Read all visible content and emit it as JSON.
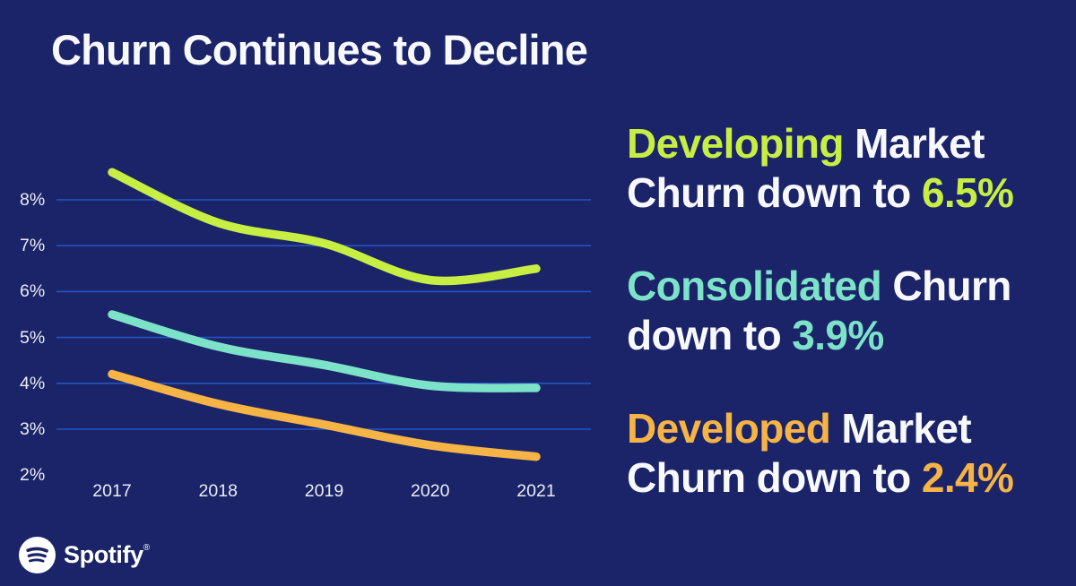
{
  "title": "Churn Continues to Decline",
  "colors": {
    "background": "#1b2469",
    "grid_blue": "#2255c5",
    "green": "#c6ee43",
    "teal": "#7de3c8",
    "orange": "#f6b446",
    "white": "#f7f9fc",
    "axis_text": "#e9edf4"
  },
  "chart_data": {
    "type": "line",
    "x": [
      2017,
      2018,
      2019,
      2020,
      2021
    ],
    "x_tick_labels": [
      "2017",
      "2018",
      "2019",
      "2020",
      "2021"
    ],
    "series": [
      {
        "name": "Developing Market",
        "color_key": "green",
        "values": [
          8.6,
          7.5,
          7.05,
          6.25,
          6.5
        ]
      },
      {
        "name": "Consolidated",
        "color_key": "teal",
        "values": [
          5.5,
          4.8,
          4.4,
          3.95,
          3.9
        ]
      },
      {
        "name": "Developed Market",
        "color_key": "orange",
        "values": [
          4.2,
          3.55,
          3.1,
          2.65,
          2.4
        ]
      }
    ],
    "y_ticks": [
      {
        "label": "8%",
        "value": 8,
        "gridline": true
      },
      {
        "label": "7%",
        "value": 7,
        "gridline": true
      },
      {
        "label": "6%",
        "value": 6,
        "gridline": true
      },
      {
        "label": "5%",
        "value": 5,
        "gridline": true
      },
      {
        "label": "4%",
        "value": 4,
        "gridline": true
      },
      {
        "label": "3%",
        "value": 3,
        "gridline": true
      },
      {
        "label": "2%",
        "value": 2,
        "gridline": false
      }
    ],
    "ylim": [
      2,
      9
    ],
    "title": "Churn Continues to Decline",
    "xlabel": "",
    "ylabel": "",
    "grid": "horizontal-only",
    "legend": "none"
  },
  "highlights": [
    {
      "id": "developing-market",
      "color_key": "green",
      "lines": [
        [
          {
            "text": "Developing"
          },
          {
            "text": " Market"
          }
        ],
        [
          {
            "text": "Churn down to "
          },
          {
            "text": "6.5%"
          }
        ]
      ]
    },
    {
      "id": "consolidated",
      "color_key": "teal",
      "lines": [
        [
          {
            "text": "Consolidated"
          },
          {
            "text": " Churn"
          }
        ],
        [
          {
            "text": "down to "
          },
          {
            "text": "3.9%"
          }
        ]
      ]
    },
    {
      "id": "developed-market",
      "color_key": "orange",
      "lines": [
        [
          {
            "text": "Developed"
          },
          {
            "text": " Market"
          }
        ],
        [
          {
            "text": "Churn down to "
          },
          {
            "text": "2.4%"
          }
        ]
      ]
    }
  ],
  "footer": {
    "brand": "Spotify",
    "registered_mark": "®"
  }
}
